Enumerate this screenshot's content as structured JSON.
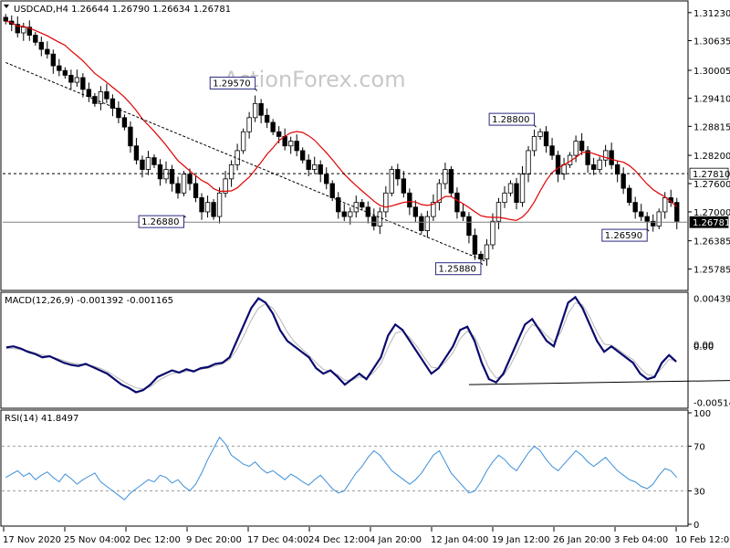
{
  "colors": {
    "background": "#ffffff",
    "candle": "#000000",
    "ma_line": "#e00000",
    "macd_line": "#0a0a6e",
    "signal_line": "#b5b5b5",
    "rsi_line": "#3b8fd8",
    "watermark": "#c8c8c8",
    "grid_dash": "#000000",
    "current_line": "#808080"
  },
  "chart_data": {
    "type": "candlestick",
    "title": "USDCAD,H4  1.26644 1.26790 1.26634 1.26781",
    "watermark": "ActionForex.com",
    "x_ticks": [
      "17 Nov 2020",
      "25 Nov 04:00",
      "2 Dec 12:00",
      "9 Dec 20:00",
      "17 Dec 04:00",
      "24 Dec 12:00",
      "4 Jan 20:00",
      "12 Jan 04:00",
      "19 Jan 12:00",
      "26 Jan 20:00",
      "3 Feb 04:00",
      "10 Feb 12:00"
    ],
    "price_panel": {
      "ylim": [
        1.2537,
        1.3142
      ],
      "y_ticks": [
        "1.31230",
        "1.30635",
        "1.30005",
        "1.29410",
        "1.28815",
        "1.28200",
        "1.27600",
        "1.27000",
        "1.26385",
        "1.25785"
      ],
      "current_price": "1.26781",
      "horizontal_level": "1.27810",
      "labels": [
        {
          "text": "1.29570",
          "x": 42,
          "y": 1.2957
        },
        {
          "text": "1.26880",
          "x": 30,
          "y": 1.2688
        },
        {
          "text": "1.25880",
          "x": 80,
          "y": 1.2588
        },
        {
          "text": "1.28800",
          "x": 89,
          "y": 1.288
        },
        {
          "text": "1.26590",
          "x": 108,
          "y": 1.2659
        }
      ],
      "trendline": [
        {
          "x": 0,
          "y": 1.3017
        },
        {
          "x": 81,
          "y": 1.2594
        }
      ],
      "closes": [
        1.3105,
        1.3098,
        1.308,
        1.3092,
        1.3075,
        1.306,
        1.3045,
        1.3035,
        1.301,
        1.3,
        1.299,
        1.2975,
        1.2985,
        1.296,
        1.2945,
        1.293,
        1.2955,
        1.294,
        1.292,
        1.29,
        1.288,
        1.284,
        1.281,
        1.279,
        1.2815,
        1.28,
        1.277,
        1.279,
        1.276,
        1.274,
        1.278,
        1.276,
        1.273,
        1.27,
        1.272,
        1.269,
        1.274,
        1.277,
        1.28,
        1.283,
        1.287,
        1.29,
        1.293,
        1.2905,
        1.289,
        1.287,
        1.286,
        1.284,
        1.285,
        1.283,
        1.281,
        1.279,
        1.28,
        1.278,
        1.276,
        1.273,
        1.27,
        1.269,
        1.27,
        1.272,
        1.271,
        1.269,
        1.267,
        1.27,
        1.274,
        1.279,
        1.277,
        1.274,
        1.271,
        1.269,
        1.266,
        1.269,
        1.272,
        1.276,
        1.279,
        1.274,
        1.27,
        1.269,
        1.265,
        1.261,
        1.26,
        1.263,
        1.268,
        1.272,
        1.274,
        1.276,
        1.272,
        1.278,
        1.283,
        1.286,
        1.287,
        1.284,
        1.282,
        1.278,
        1.28,
        1.282,
        1.285,
        1.283,
        1.28,
        1.279,
        1.281,
        1.283,
        1.28,
        1.278,
        1.275,
        1.272,
        1.27,
        1.269,
        1.268,
        1.267,
        1.27,
        1.273,
        1.272,
        1.268
      ]
    },
    "macd_panel": {
      "title": "MACD(12,26,9) -0.001392 -0.001165",
      "ylim": [
        -0.0055,
        0.0047
      ],
      "y_ticks": [
        "0.004396",
        "0.00",
        "0.00",
        "-0.005144"
      ],
      "macd": [
        -0.0001,
        0.0,
        -0.0002,
        -0.0005,
        -0.0007,
        -0.001,
        -0.0009,
        -0.0012,
        -0.0015,
        -0.0017,
        -0.0018,
        -0.0016,
        -0.0019,
        -0.0022,
        -0.0025,
        -0.003,
        -0.0035,
        -0.0038,
        -0.0042,
        -0.004,
        -0.0035,
        -0.0028,
        -0.0025,
        -0.0022,
        -0.0024,
        -0.0021,
        -0.0023,
        -0.002,
        -0.0019,
        -0.0016,
        -0.0015,
        -0.001,
        0.0005,
        0.002,
        0.0035,
        0.0044,
        0.004,
        0.003,
        0.0015,
        0.0005,
        0.0,
        -0.0005,
        -0.001,
        -0.002,
        -0.0025,
        -0.0022,
        -0.0028,
        -0.0035,
        -0.003,
        -0.0025,
        -0.003,
        -0.002,
        -0.001,
        0.001,
        0.002,
        0.0015,
        0.0005,
        -0.0005,
        -0.0015,
        -0.0025,
        -0.002,
        -0.001,
        0.0,
        0.0015,
        0.0018,
        0.0005,
        -0.0015,
        -0.003,
        -0.0033,
        -0.0025,
        -0.001,
        0.0005,
        0.002,
        0.0025,
        0.0015,
        0.0005,
        0.0,
        0.002,
        0.004,
        0.0045,
        0.0035,
        0.002,
        0.0005,
        -0.0005,
        0.0,
        -0.0005,
        -0.001,
        -0.0015,
        -0.0025,
        -0.003,
        -0.0028,
        -0.0015,
        -0.0008,
        -0.0014
      ],
      "signal": [
        -0.0002,
        -0.0002,
        -0.0003,
        -0.0004,
        -0.0006,
        -0.0008,
        -0.0009,
        -0.0011,
        -0.0013,
        -0.0015,
        -0.0016,
        -0.0017,
        -0.0018,
        -0.002,
        -0.0023,
        -0.0027,
        -0.0031,
        -0.0035,
        -0.0038,
        -0.0039,
        -0.0037,
        -0.0032,
        -0.0028,
        -0.0025,
        -0.0024,
        -0.0023,
        -0.0022,
        -0.0021,
        -0.002,
        -0.0018,
        -0.0016,
        -0.0012,
        -0.0003,
        0.001,
        0.0024,
        0.0035,
        0.0039,
        0.0035,
        0.0025,
        0.0013,
        0.0004,
        -0.0002,
        -0.0008,
        -0.0015,
        -0.0021,
        -0.0023,
        -0.0026,
        -0.0031,
        -0.0031,
        -0.0028,
        -0.0029,
        -0.0024,
        -0.0016,
        -0.0001,
        0.0012,
        0.0014,
        0.0008,
        0.0,
        -0.001,
        -0.0019,
        -0.002,
        -0.0014,
        -0.0006,
        0.0007,
        0.0014,
        0.0009,
        -0.0005,
        -0.002,
        -0.0029,
        -0.0027,
        -0.0017,
        -0.0004,
        0.0011,
        0.002,
        0.0017,
        0.001,
        0.0004,
        0.0013,
        0.003,
        0.004,
        0.0038,
        0.0027,
        0.0013,
        0.0002,
        0.0001,
        -0.0003,
        -0.0008,
        -0.0012,
        -0.002,
        -0.0026,
        -0.0027,
        -0.002,
        -0.0012,
        -0.0013
      ],
      "trendline": [
        {
          "x": 78,
          "y": -0.0035
        },
        {
          "x": 125,
          "y": -0.0031
        }
      ]
    },
    "rsi_panel": {
      "title": "RSI(14) 41.8497",
      "ylim": [
        0,
        100
      ],
      "y_ticks": [
        "100",
        "70",
        "30",
        "0"
      ],
      "levels": [
        70,
        30
      ],
      "values": [
        42,
        45,
        48,
        43,
        46,
        40,
        44,
        47,
        42,
        38,
        45,
        41,
        36,
        40,
        43,
        46,
        38,
        34,
        30,
        26,
        22,
        28,
        32,
        36,
        40,
        38,
        44,
        42,
        37,
        40,
        34,
        30,
        36,
        46,
        58,
        68,
        78,
        72,
        62,
        58,
        54,
        52,
        56,
        50,
        46,
        48,
        44,
        40,
        45,
        42,
        38,
        35,
        40,
        44,
        38,
        32,
        28,
        30,
        38,
        46,
        52,
        60,
        66,
        62,
        55,
        48,
        44,
        40,
        36,
        40,
        46,
        54,
        62,
        66,
        56,
        46,
        40,
        34,
        28,
        30,
        38,
        48,
        56,
        62,
        58,
        52,
        48,
        56,
        64,
        70,
        66,
        58,
        52,
        48,
        54,
        60,
        66,
        62,
        56,
        52,
        56,
        60,
        54,
        48,
        44,
        40,
        38,
        34,
        32,
        36,
        44,
        50,
        48,
        42
      ]
    }
  }
}
